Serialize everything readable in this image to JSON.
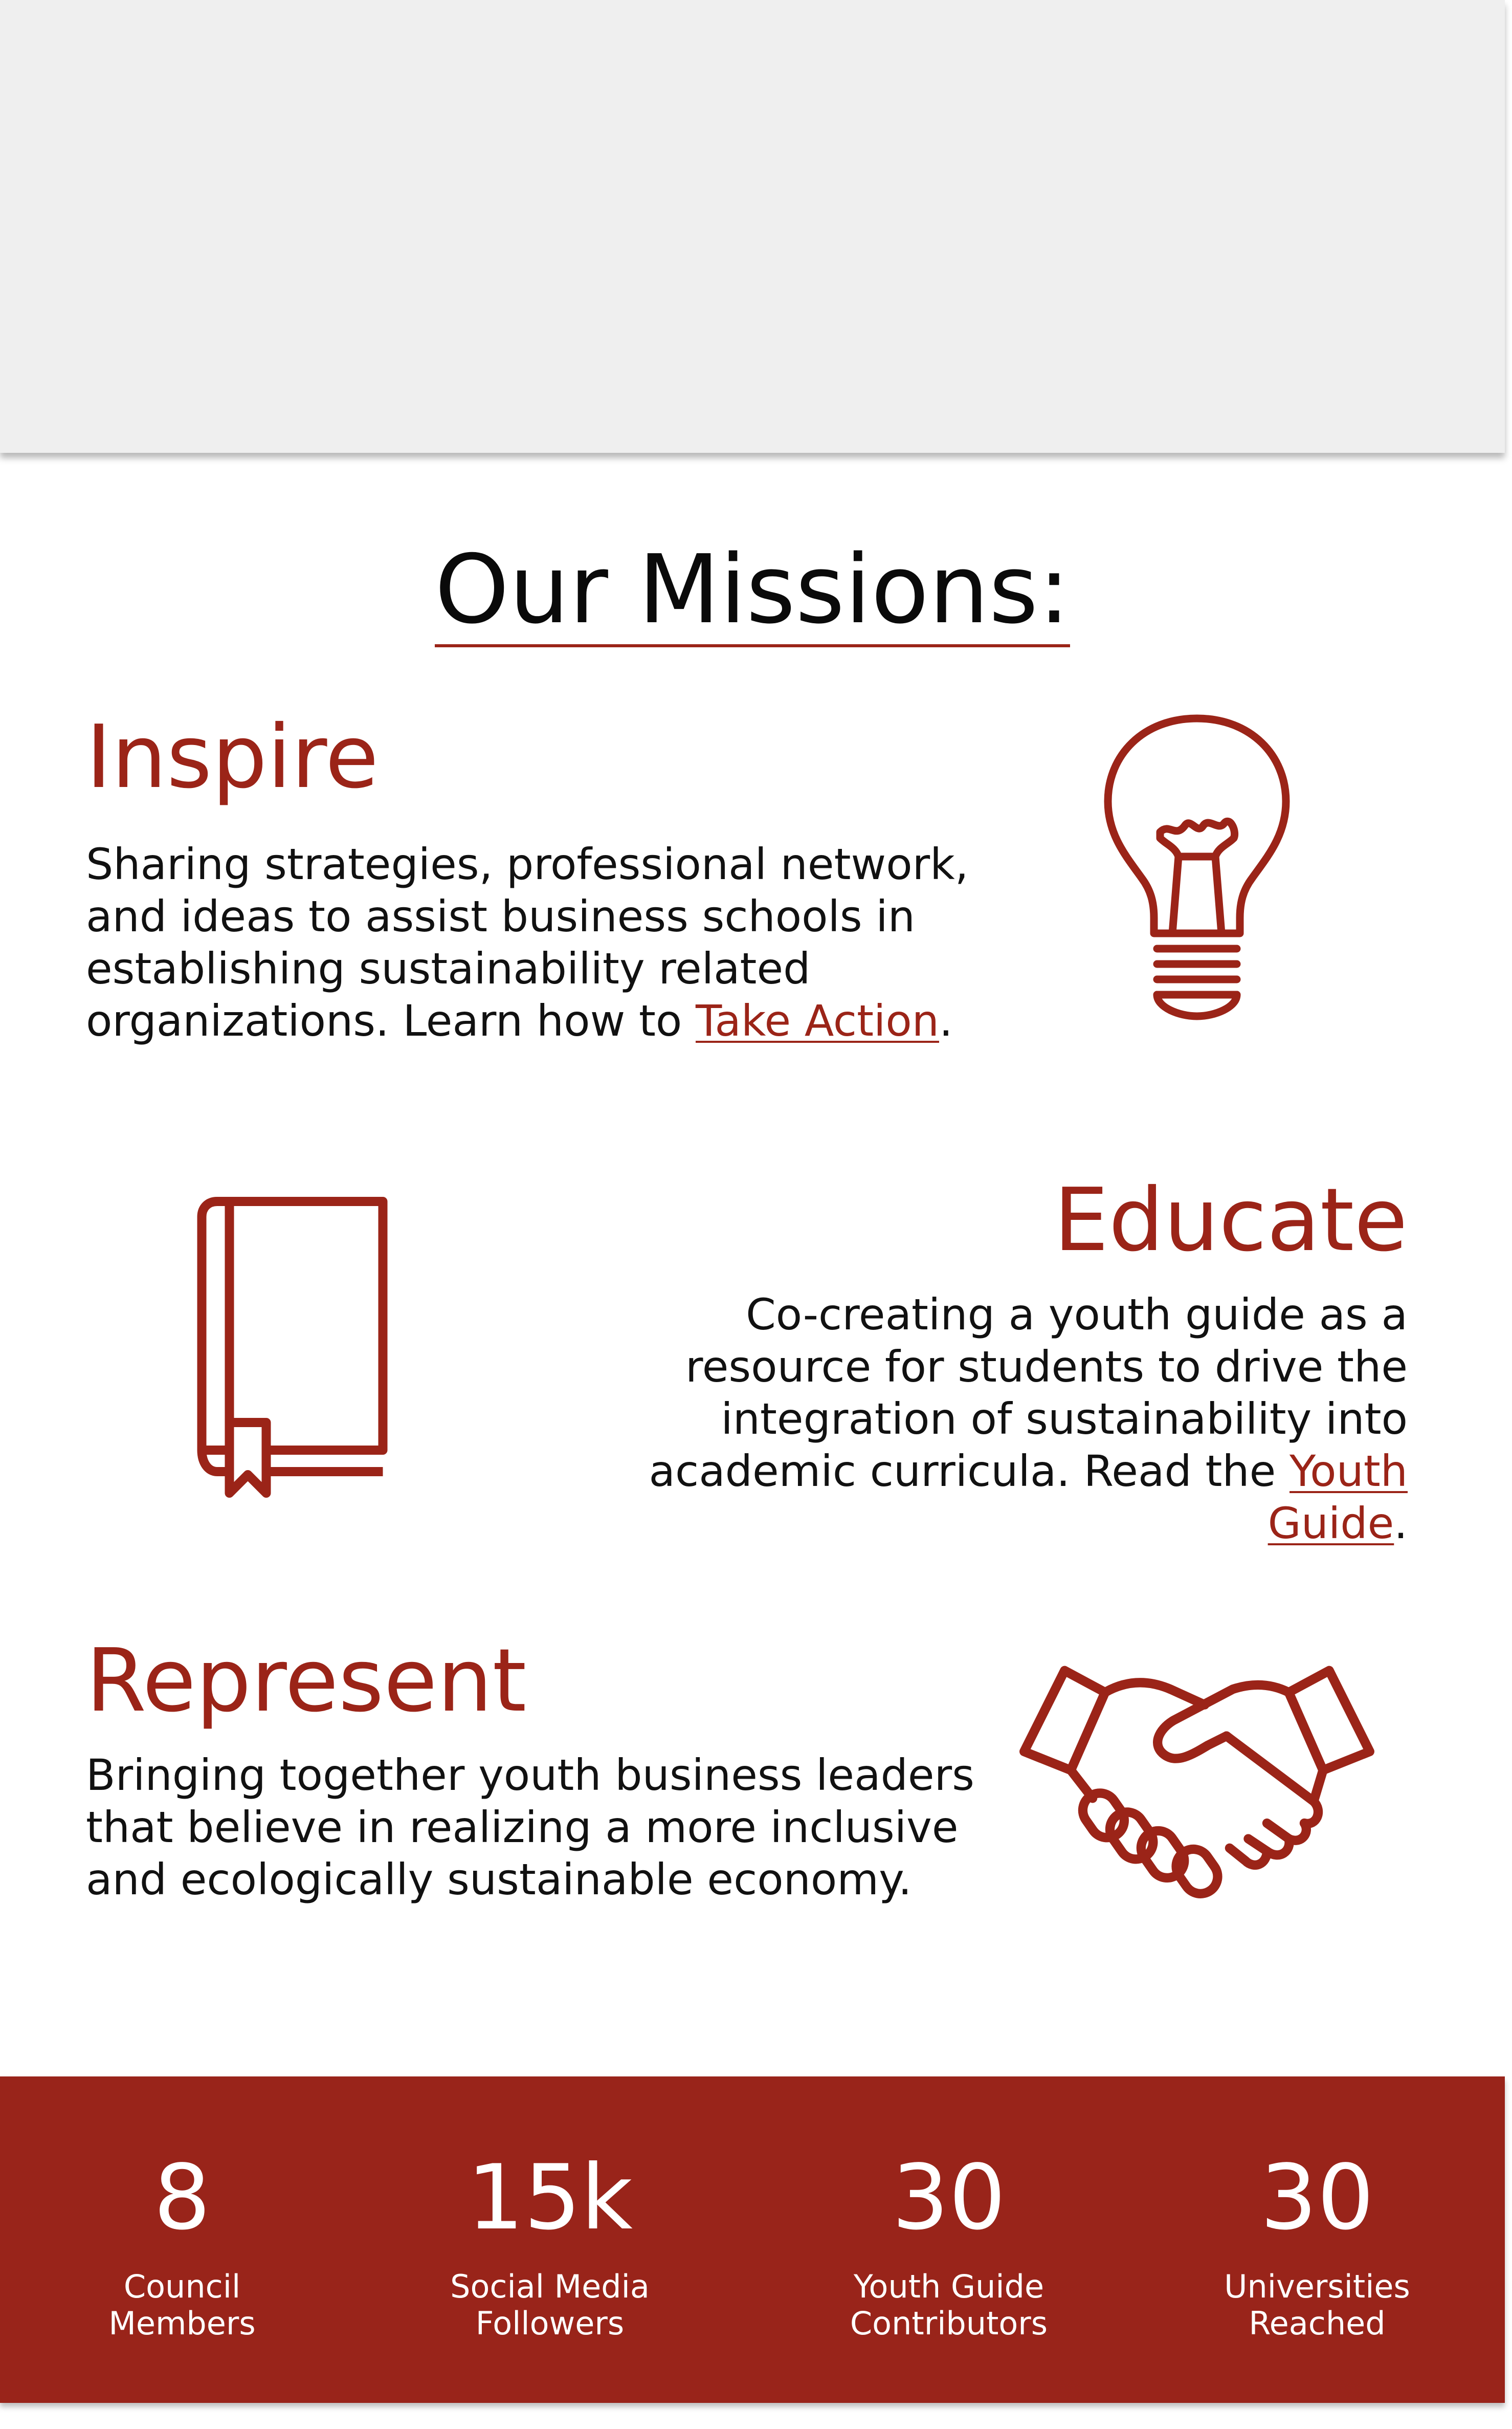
{
  "hero": {},
  "missions": {
    "title": "Our Missions:",
    "inspire": {
      "heading": "Inspire",
      "text": "Sharing strategies, professional network, and ideas to assist business schools in establishing sustainability related organizations. Learn how to ",
      "link": "Take Action",
      "suffix": ".",
      "icon": "lightbulb-icon"
    },
    "educate": {
      "heading": "Educate",
      "text": "Co-creating a youth guide as a resource for students to drive the integration of sustainability into academic curricula. Read the ",
      "link": "Youth Guide",
      "suffix": ".",
      "icon": "book-icon"
    },
    "represent": {
      "heading": "Represent",
      "text": "Bringing together youth business leaders that believe in realizing a more inclusive and ecologically sustainable economy.",
      "icon": "handshake-icon"
    }
  },
  "stats": [
    {
      "value": "8",
      "label_line1": "Council",
      "label_line2": "Members"
    },
    {
      "value": "15k",
      "label_line1": "Social Media",
      "label_line2": "Followers"
    },
    {
      "value": "30",
      "label_line1": "Youth Guide",
      "label_line2": "Contributors"
    },
    {
      "value": "30",
      "label_line1": "Universities",
      "label_line2": "Reached"
    }
  ],
  "colors": {
    "accent": "#9b2418",
    "stats_background": "#99241a",
    "panel": "#efefef"
  }
}
